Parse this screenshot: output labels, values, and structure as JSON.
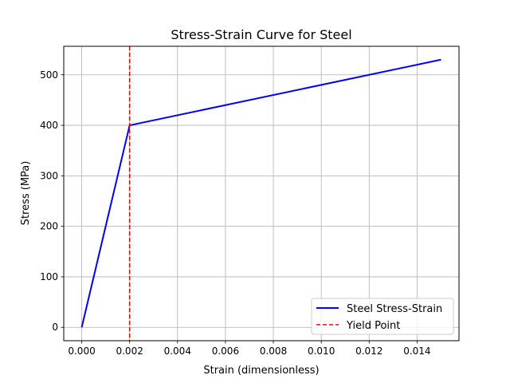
{
  "chart_data": {
    "type": "line",
    "title": "Stress-Strain Curve for Steel",
    "xlabel": "Strain (dimensionless)",
    "ylabel": "Stress (MPa)",
    "xlim": [
      -0.00075,
      0.01575
    ],
    "ylim": [
      -26.5,
      556.5
    ],
    "x_ticks": [
      "0.000",
      "0.002",
      "0.004",
      "0.006",
      "0.008",
      "0.010",
      "0.012",
      "0.014"
    ],
    "x_tick_values": [
      0,
      0.002,
      0.004,
      0.006,
      0.008,
      0.01,
      0.012,
      0.014
    ],
    "y_ticks": [
      "0",
      "100",
      "200",
      "300",
      "400",
      "500"
    ],
    "y_tick_values": [
      0,
      100,
      200,
      300,
      400,
      500
    ],
    "grid": true,
    "legend_position": "lower-right",
    "series": [
      {
        "name": "Steel Stress-Strain",
        "style": "solid",
        "color": "#0000ff",
        "x": [
          0,
          0.002,
          0.015
        ],
        "y": [
          0,
          400,
          530
        ]
      }
    ],
    "vlines": [
      {
        "name": "Yield Point",
        "x": 0.002,
        "style": "dashed",
        "color": "#ff0000"
      }
    ]
  }
}
